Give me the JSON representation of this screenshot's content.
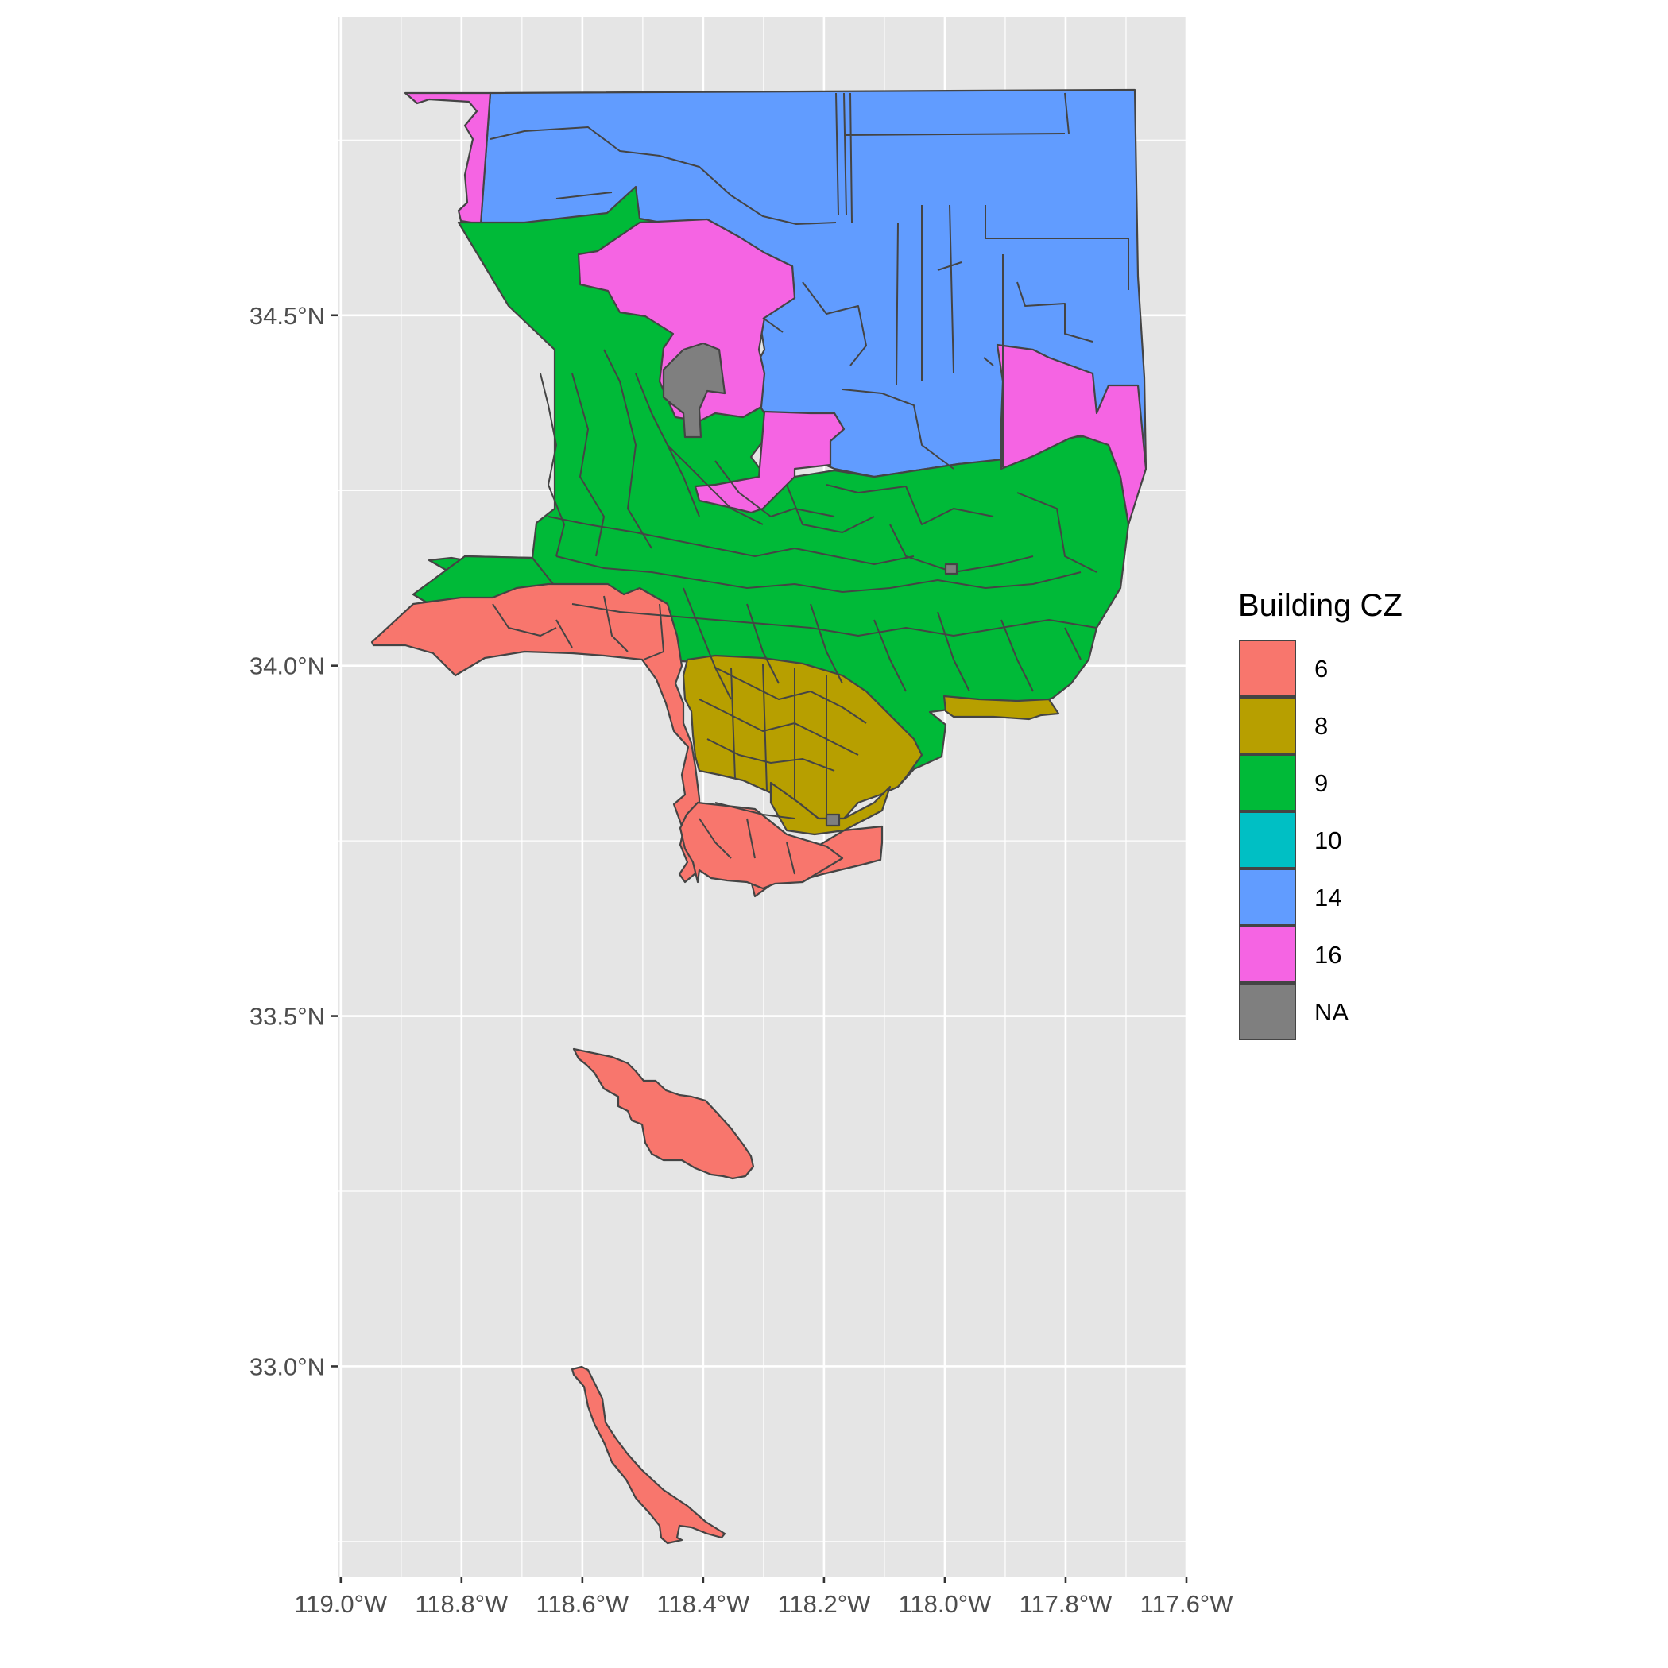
{
  "chart_data": {
    "type": "choropleth map",
    "legend": {
      "title": "Building CZ",
      "entries": [
        {
          "label": "6",
          "color": "#F8766D"
        },
        {
          "label": "8",
          "color": "#B79F00"
        },
        {
          "label": "9",
          "color": "#00BA38"
        },
        {
          "label": "10",
          "color": "#00BFC4"
        },
        {
          "label": "14",
          "color": "#619CFF"
        },
        {
          "label": "16",
          "color": "#F564E3"
        },
        {
          "label": "NA",
          "color": "#7F7F7F"
        }
      ]
    },
    "x_ticks": [
      {
        "value": -119.0,
        "label": "119.0°W"
      },
      {
        "value": -118.8,
        "label": "118.8°W"
      },
      {
        "value": -118.6,
        "label": "118.6°W"
      },
      {
        "value": -118.4,
        "label": "118.4°W"
      },
      {
        "value": -118.2,
        "label": "118.2°W"
      },
      {
        "value": -118.0,
        "label": "118.0°W"
      },
      {
        "value": -117.8,
        "label": "117.8°W"
      },
      {
        "value": -117.6,
        "label": "117.6°W"
      }
    ],
    "y_ticks": [
      {
        "value": 34.5,
        "label": "34.5°N"
      },
      {
        "value": 34.0,
        "label": "34.0°N"
      },
      {
        "value": 33.5,
        "label": "33.5°N"
      },
      {
        "value": 33.0,
        "label": "33.0°N"
      }
    ],
    "xlim": [
      -119.005,
      -117.6
    ],
    "ylim": [
      32.7,
      34.925
    ],
    "panel_background": "#E5E5E5",
    "grid": true,
    "legend_position": "right"
  }
}
